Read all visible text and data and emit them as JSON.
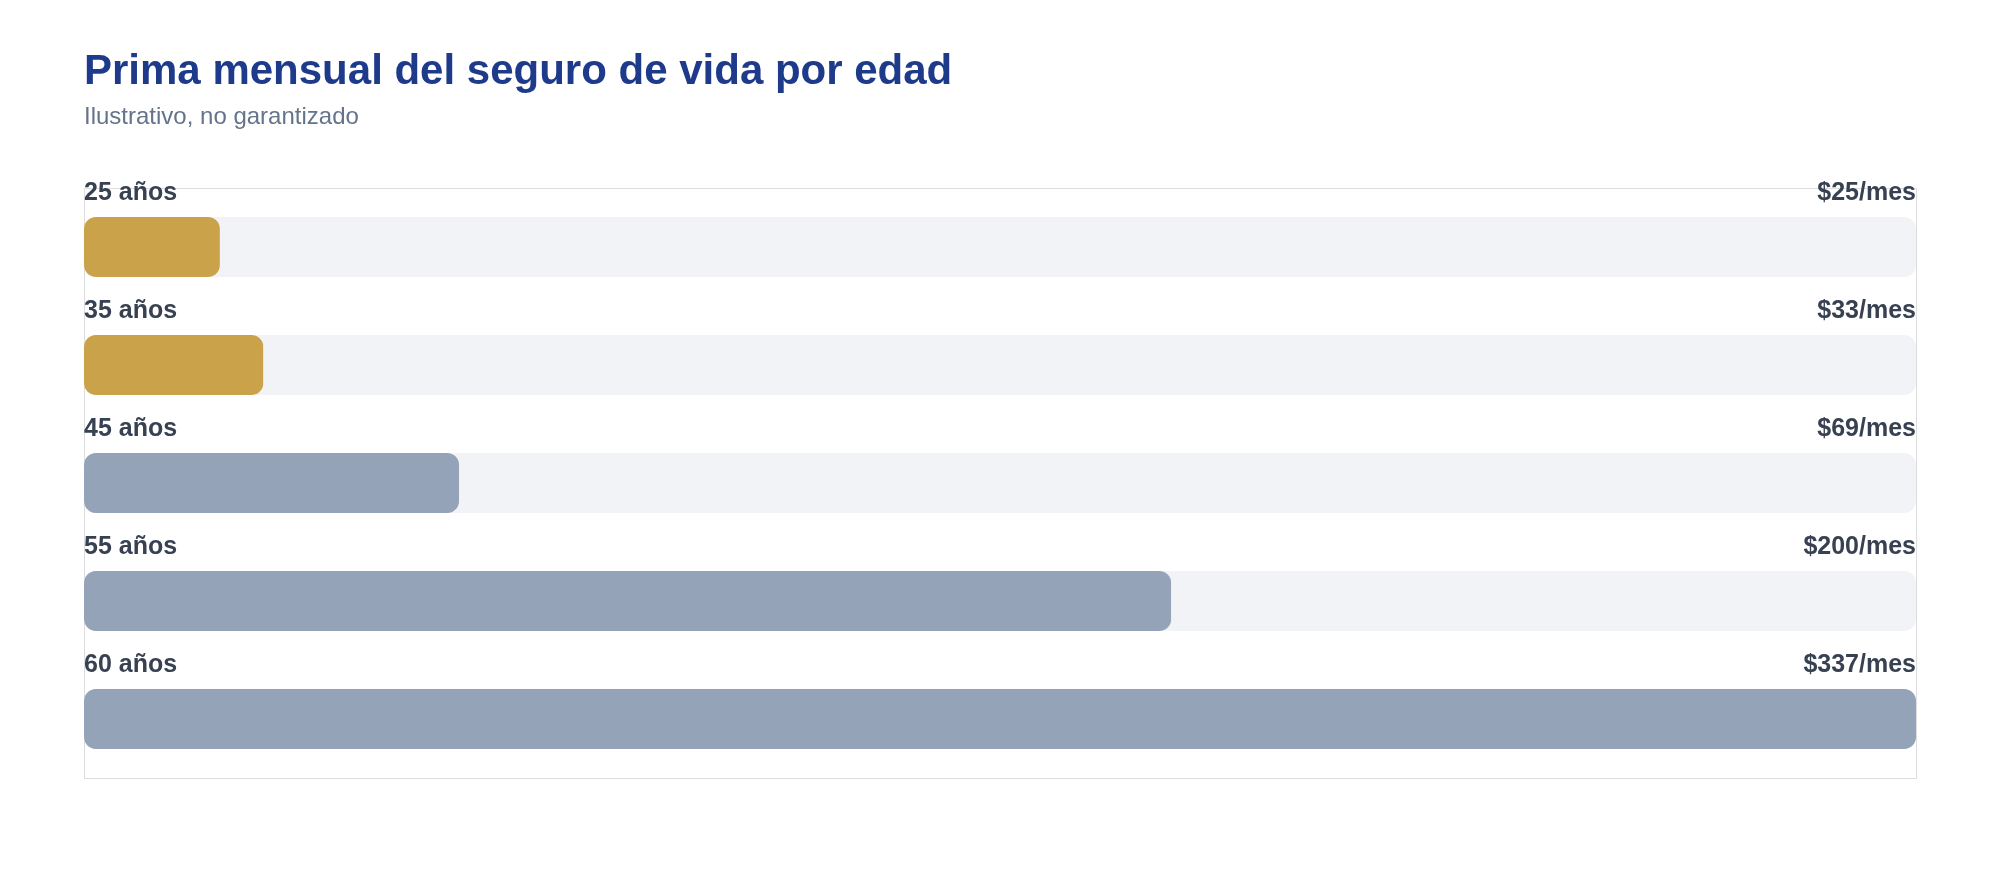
{
  "chart_data": {
    "type": "bar",
    "orientation": "horizontal",
    "title": "Prima mensual del seguro de vida por edad",
    "subtitle": "Ilustrativo, no garantizado",
    "categories": [
      "25 años",
      "35 años",
      "45 años",
      "55 años",
      "60 años"
    ],
    "values": [
      25,
      33,
      69,
      200,
      337
    ],
    "value_labels": [
      "$25/mes",
      "$33/mes",
      "$69/mes",
      "$200/mes",
      "$337/mes"
    ],
    "colors": [
      "#c9a24a",
      "#c9a24a",
      "#94a3b8",
      "#94a3b8",
      "#94a3b8"
    ]
  }
}
